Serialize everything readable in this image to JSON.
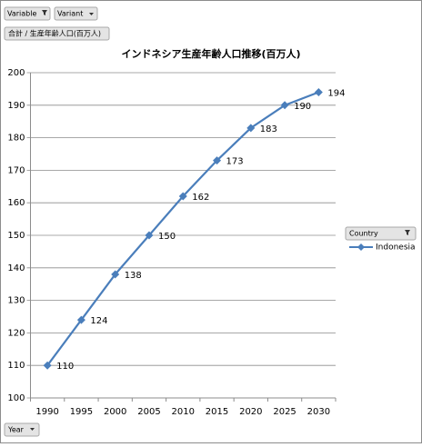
{
  "chart_data": {
    "type": "line",
    "title": "インドネシア生産年齢人口推移(百万人)",
    "categories": [
      "1990",
      "1995",
      "2000",
      "2005",
      "2010",
      "2015",
      "2020",
      "2025",
      "2030"
    ],
    "series": [
      {
        "name": "Indonesia",
        "color": "#4a7ebb",
        "values": [
          110,
          124,
          138,
          150,
          162,
          173,
          183,
          190,
          194
        ]
      }
    ],
    "ylim": [
      100,
      200
    ],
    "yticks": [
      100,
      110,
      120,
      130,
      140,
      150,
      160,
      170,
      180,
      190,
      200
    ],
    "grid": true
  },
  "pivot_buttons": {
    "filters": [
      "Variable",
      "Variant"
    ],
    "value_field": "合計 / 生産年齢人口(百万人)",
    "legend_field": "Country",
    "axis_field": "Year"
  }
}
